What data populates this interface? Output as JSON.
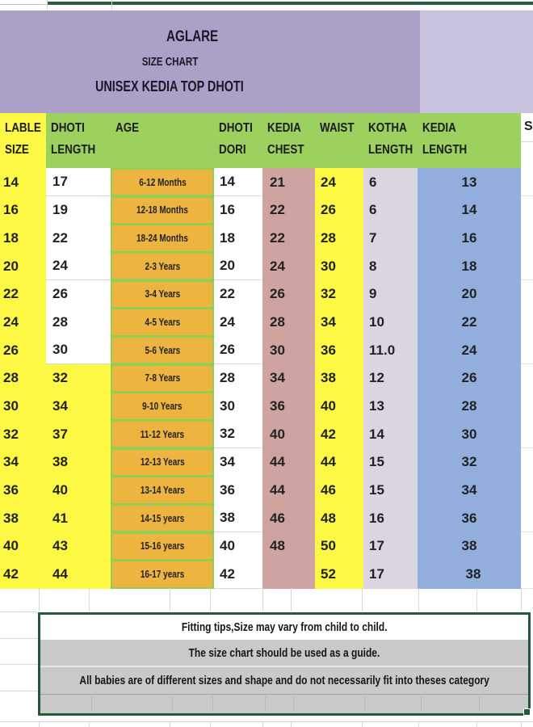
{
  "title": {
    "brand": "AGLARE",
    "subtitle": "SIZE CHART",
    "product": "UNISEX KEDIA TOP DHOTI"
  },
  "partial_right_text": "S",
  "table": {
    "columns": [
      {
        "id": "lable-size",
        "line1": "LABLE",
        "line2": "SIZE"
      },
      {
        "id": "dhoti-length",
        "line1": "DHOTI",
        "line2": "LENGTH"
      },
      {
        "id": "age",
        "line1": "AGE",
        "line2": ""
      },
      {
        "id": "dhoti-dori",
        "line1": "DHOTI",
        "line2": "DORI"
      },
      {
        "id": "kedia-chest",
        "line1": "KEDIA",
        "line2": "CHEST"
      },
      {
        "id": "waist",
        "line1": "WAIST",
        "line2": ""
      },
      {
        "id": "kotha-length",
        "line1": "KOTHA",
        "line2": "LENGTH"
      },
      {
        "id": "kedia-length",
        "line1": "KEDIA",
        "line2": "LENGTH"
      }
    ],
    "rows": [
      [
        "14",
        "17",
        "6-12 Months",
        "14",
        "21",
        "24",
        "6",
        "13"
      ],
      [
        "16",
        "19",
        "12-18 Months",
        "16",
        "22",
        "26",
        "6",
        "14"
      ],
      [
        "18",
        "22",
        "18-24 Months",
        "18",
        "22",
        "28",
        "7",
        "16"
      ],
      [
        "20",
        "24",
        "2-3 Years",
        "20",
        "24",
        "30",
        "8",
        "18"
      ],
      [
        "22",
        "26",
        "3-4 Years",
        "22",
        "26",
        "32",
        "9",
        "20"
      ],
      [
        "24",
        "28",
        "4-5 Years",
        "24",
        "28",
        "34",
        "10",
        "22"
      ],
      [
        "26",
        "30",
        "5-6 Years",
        "26",
        "30",
        "36",
        "11.0",
        "24"
      ],
      [
        "28",
        "32",
        "7-8 Years",
        "28",
        "34",
        "38",
        "12",
        "26"
      ],
      [
        "30",
        "34",
        "9-10 Years",
        "30",
        "36",
        "40",
        "13",
        "28"
      ],
      [
        "32",
        "37",
        "11-12 Years",
        "32",
        "40",
        "42",
        "14",
        "30"
      ],
      [
        "34",
        "38",
        "12-13 Years",
        "34",
        "44",
        "44",
        "15",
        "32"
      ],
      [
        "36",
        "40",
        "13-14 Years",
        "36",
        "44",
        "46",
        "15",
        "34"
      ],
      [
        "38",
        "41",
        "14-15 years",
        "38",
        "46",
        "48",
        "16",
        "36"
      ],
      [
        "40",
        "43",
        "15-16 years",
        "40",
        "48",
        "50",
        "17",
        "38"
      ],
      [
        "42",
        "44",
        "16-17 years",
        "42",
        "",
        "52",
        "17",
        "38"
      ]
    ]
  },
  "notes": {
    "line1": "Fitting tips,Size may vary from child to child.",
    "line2": "The size chart should be used as a guide.",
    "line3": "All babies are of different sizes and shape and do not necessarily fit into theses category"
  },
  "colors": {
    "title_purple": "#ada0c8",
    "title_purple_light": "#c9c2dc",
    "header_green": "#9cd05f",
    "yellow": "#fcf843",
    "age_orange": "#eeb440",
    "age_border_green": "#8fd052",
    "chest_pink": "#cfa39f",
    "kotha_lavender": "#dad5e1",
    "kedia_blue": "#92aedd",
    "notes_gray": "#c9c9c9",
    "selection_green": "#26593c"
  }
}
